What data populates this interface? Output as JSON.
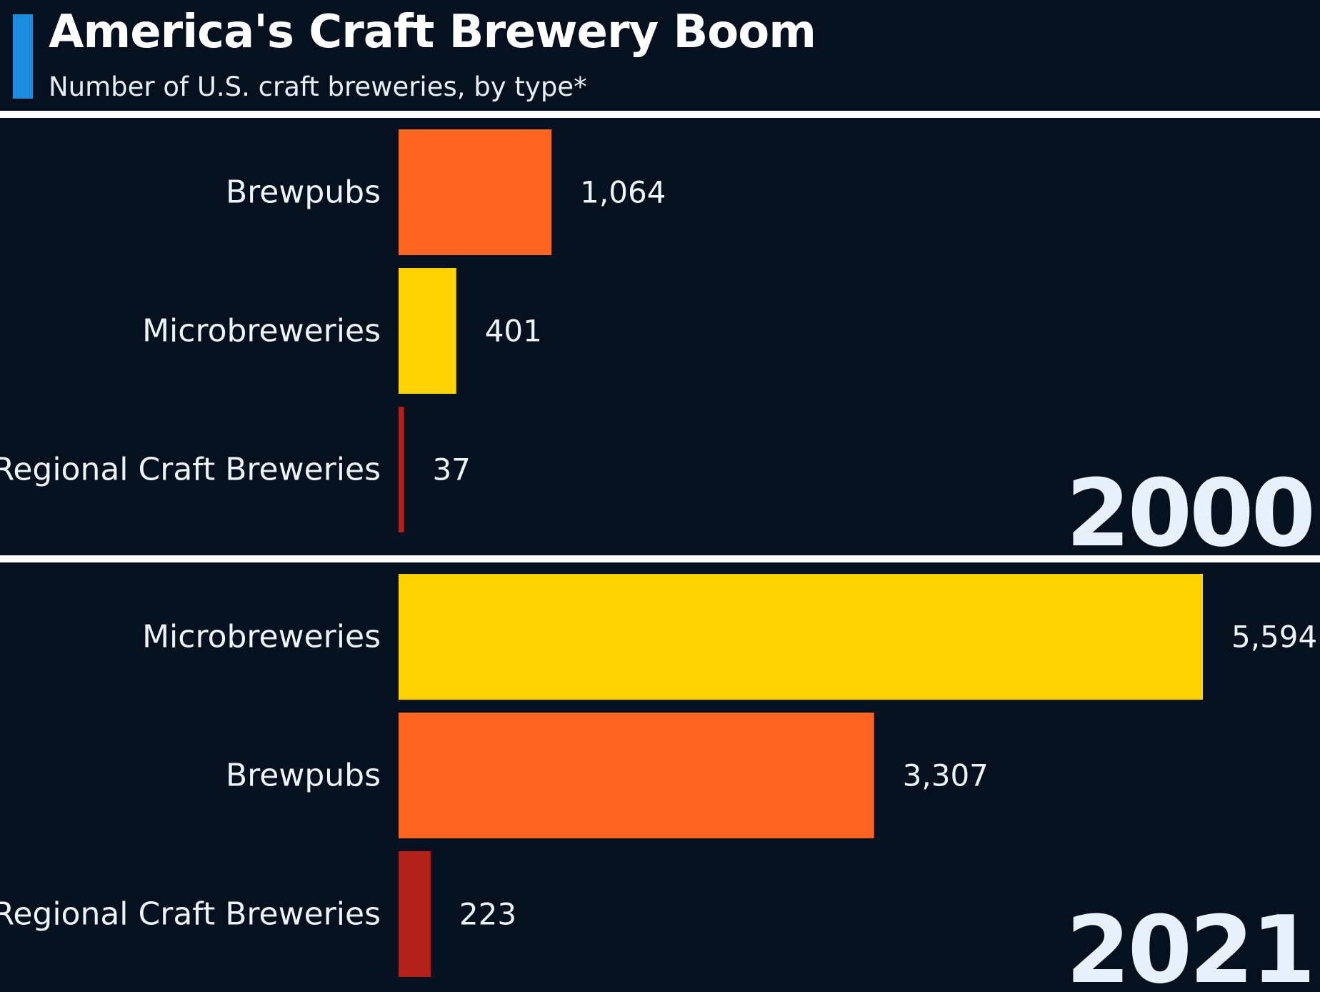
{
  "header": {
    "title": "America's Craft Brewery Boom",
    "subtitle": "Number of U.S. craft breweries, by type*",
    "accent_color": "#1a8de0"
  },
  "colors": {
    "Brewpubs": "#ff6422",
    "Microbreweries": "#ffd300",
    "Regional Craft Breweries": "#b3211b",
    "background": "#05111f"
  },
  "chart_data": [
    {
      "type": "bar",
      "orientation": "horizontal",
      "year": "2000",
      "categories": [
        "Brewpubs",
        "Microbreweries",
        "Regional Craft Breweries"
      ],
      "values": [
        1064,
        401,
        37
      ],
      "value_labels": [
        "1,064",
        "401",
        "37"
      ],
      "xlim": [
        0,
        5594
      ]
    },
    {
      "type": "bar",
      "orientation": "horizontal",
      "year": "2021",
      "categories": [
        "Microbreweries",
        "Brewpubs",
        "Regional Craft Breweries"
      ],
      "values": [
        5594,
        3307,
        223
      ],
      "value_labels": [
        "5,594",
        "3,307",
        "223"
      ],
      "xlim": [
        0,
        5594
      ]
    }
  ]
}
